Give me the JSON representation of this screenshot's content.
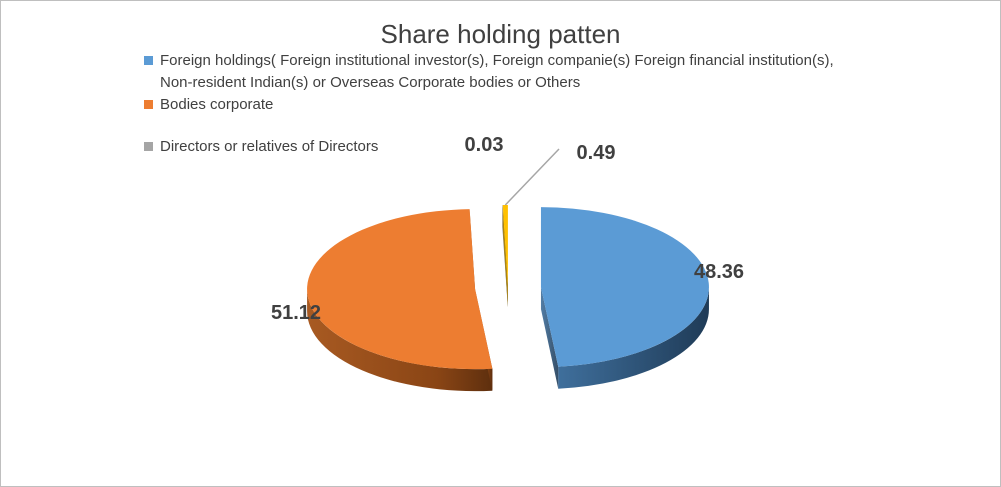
{
  "chart_data": {
    "type": "pie",
    "title": "Share holding patten",
    "legend_position": "top",
    "slices": [
      {
        "name": "Foreign holdings( Foreign institutional investor(s), Foreign companie(s) Foreign financial institution(s), Non-resident Indian(s) or Overseas Corporate bodies or Others",
        "value": 48.36,
        "label": "48.36",
        "color": "#5b9bd5"
      },
      {
        "name": "Bodies corporate",
        "value": 51.12,
        "label": "51.12",
        "color": "#ed7d31"
      },
      {
        "name": "Directors or relatives of Directors",
        "value": 0.03,
        "label": "0.03",
        "color": "#a5a5a5"
      },
      {
        "name": "",
        "value": 0.49,
        "label": "0.49",
        "color": "#ffc000"
      }
    ]
  }
}
